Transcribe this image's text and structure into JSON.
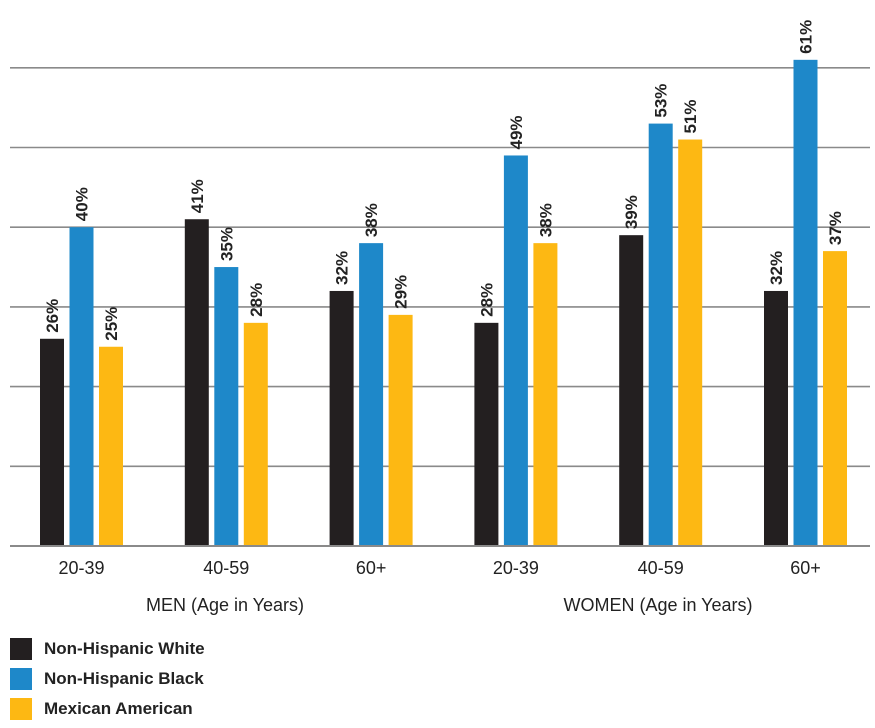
{
  "chart_data": {
    "type": "bar",
    "title": "",
    "xlabel": "",
    "ylabel": "",
    "ylim": [
      0,
      60
    ],
    "grid": true,
    "legend_position": "bottom-left",
    "group_labels": [
      "MEN (Age in Years)",
      "WOMEN (Age in Years)"
    ],
    "categories": [
      "20-39",
      "40-59",
      "60+",
      "20-39",
      "40-59",
      "60+"
    ],
    "series": [
      {
        "name": "Non-Hispanic White",
        "color": "#231f20",
        "values": [
          26,
          41,
          32,
          28,
          39,
          32
        ],
        "labels": [
          "26%",
          "41%",
          "32%",
          "28%",
          "39%",
          "32%"
        ]
      },
      {
        "name": "Non-Hispanic Black",
        "color": "#1e88c9",
        "values": [
          40,
          35,
          38,
          49,
          53,
          61
        ],
        "labels": [
          "40%",
          "35%",
          "38%",
          "49%",
          "53%",
          "61%"
        ]
      },
      {
        "name": "Mexican American",
        "color": "#fdb813",
        "values": [
          25,
          28,
          29,
          38,
          51,
          37
        ],
        "labels": [
          "25%",
          "28%",
          "29%",
          "38%",
          "51%",
          "37%"
        ]
      }
    ]
  }
}
